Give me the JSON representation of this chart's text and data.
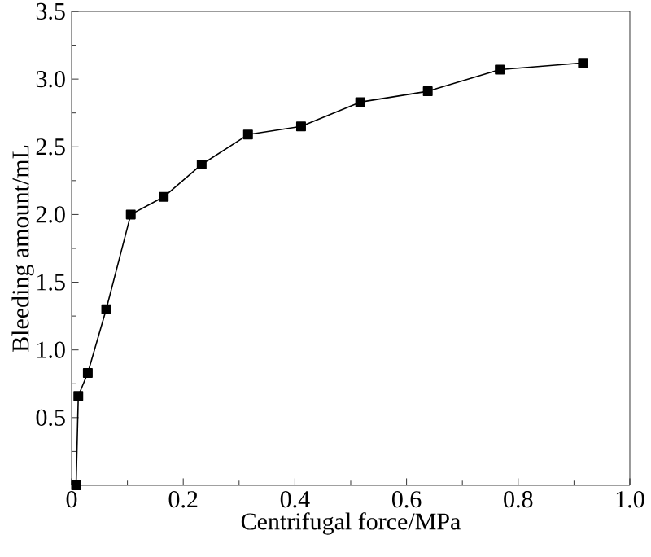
{
  "chart_data": {
    "type": "line",
    "xlabel": "Centrifugal force/MPa",
    "ylabel": "Bleeding amount/mL",
    "marker": "square",
    "line_style": "solid",
    "grid": false,
    "xlim": [
      0,
      1.0
    ],
    "ylim": [
      0,
      3.5
    ],
    "xticks": [
      {
        "value": 0,
        "label": "0"
      },
      {
        "value": 0.2,
        "label": "0.2"
      },
      {
        "value": 0.4,
        "label": "0.4"
      },
      {
        "value": 0.6,
        "label": "0.6"
      },
      {
        "value": 0.8,
        "label": "0.8"
      },
      {
        "value": 1.0,
        "label": "1.0"
      }
    ],
    "yticks": [
      {
        "value": 0,
        "label": null
      },
      {
        "value": 0.5,
        "label": "0.5"
      },
      {
        "value": 1.0,
        "label": "1.0"
      },
      {
        "value": 1.5,
        "label": "1.5"
      },
      {
        "value": 2.0,
        "label": "2.0"
      },
      {
        "value": 2.5,
        "label": "2.5"
      },
      {
        "value": 3.0,
        "label": "3.0"
      },
      {
        "value": 3.5,
        "label": "3.5"
      }
    ],
    "x": [
      0.008,
      0.012,
      0.029,
      0.062,
      0.106,
      0.165,
      0.233,
      0.316,
      0.411,
      0.517,
      0.638,
      0.767,
      0.916
    ],
    "series": [
      {
        "color": "#000000",
        "values": [
          0,
          0.66,
          0.83,
          1.3,
          2.0,
          2.13,
          2.37,
          2.59,
          2.65,
          2.83,
          2.91,
          3.07,
          3.12
        ]
      }
    ]
  }
}
